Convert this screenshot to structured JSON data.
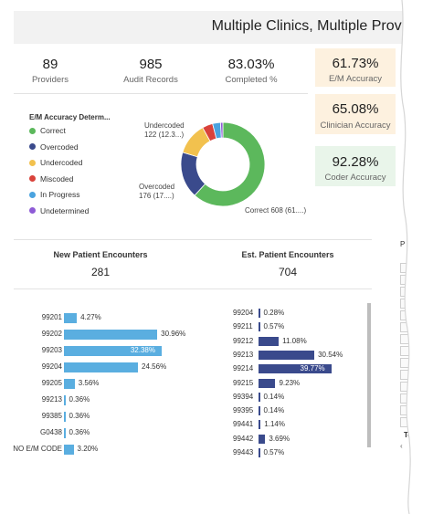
{
  "header": {
    "title": "Multiple Clinics, Multiple Provide"
  },
  "kpis": [
    {
      "value": "89",
      "label": "Providers"
    },
    {
      "value": "985",
      "label": "Audit Records"
    },
    {
      "value": "83.03%",
      "label": "Completed %"
    }
  ],
  "cards": {
    "em_accuracy": {
      "value": "61.73%",
      "label": "E/M Accuracy"
    },
    "clinician_accuracy": {
      "value": "65.08%",
      "label": "Clinician Accuracy"
    },
    "coder_accuracy": {
      "value": "92.28%",
      "label": "Coder Accuracy"
    }
  },
  "legend": {
    "title": "E/M Accuracy Determ...",
    "items": [
      {
        "label": "Correct",
        "color": "#5cb85c"
      },
      {
        "label": "Overcoded",
        "color": "#3a4a8c"
      },
      {
        "label": "Undercoded",
        "color": "#f2c14e"
      },
      {
        "label": "Miscoded",
        "color": "#d9423a"
      },
      {
        "label": "In Progress",
        "color": "#4aa3df"
      },
      {
        "label": "Undetermined",
        "color": "#8e5bd6"
      }
    ]
  },
  "donut_labels": {
    "undercoded": [
      "Undercoded",
      "122 (12.3...)"
    ],
    "overcoded": [
      "Overcoded",
      "176 (17....)"
    ],
    "correct": "Correct 608 (61....)"
  },
  "chart_data": [
    {
      "type": "pie",
      "title": "E/M Accuracy Determ...",
      "categories": [
        "Correct",
        "Overcoded",
        "Undercoded",
        "Miscoded",
        "In Progress",
        "Undetermined"
      ],
      "values": [
        608,
        176,
        122,
        40,
        30,
        9
      ],
      "colors": [
        "#5cb85c",
        "#3a4a8c",
        "#f2c14e",
        "#d9423a",
        "#4aa3df",
        "#8e5bd6"
      ]
    },
    {
      "type": "bar",
      "title": "New Patient Encounters",
      "categories": [
        "99201",
        "99202",
        "99203",
        "99204",
        "99205",
        "99213",
        "99385",
        "G0438",
        "NO E/M CODE"
      ],
      "values": [
        4.27,
        30.96,
        32.38,
        24.56,
        3.56,
        0.36,
        0.36,
        0.36,
        3.2
      ],
      "labels": [
        "4.27%",
        "30.96%",
        "32.38%",
        "24.56%",
        "3.56%",
        "0.36%",
        "0.36%",
        "0.36%",
        "3.20%"
      ]
    },
    {
      "type": "bar",
      "title": "Est. Patient Encounters",
      "categories": [
        "99204",
        "99211",
        "99212",
        "99213",
        "99214",
        "99215",
        "99394",
        "99395",
        "99441",
        "99442",
        "99443"
      ],
      "values": [
        0.28,
        0.57,
        11.08,
        30.54,
        39.77,
        9.23,
        0.14,
        0.14,
        1.14,
        3.69,
        0.57
      ],
      "labels": [
        "0.28%",
        "0.57%",
        "11.08%",
        "30.54%",
        "39.77%",
        "9.23%",
        "0.14%",
        "0.14%",
        "1.14%",
        "3.69%",
        "0.57%"
      ]
    }
  ],
  "encounters": {
    "new": {
      "title": "New Patient Encounters",
      "value": "281"
    },
    "est": {
      "title": "Est. Patient Encounters",
      "value": "704"
    }
  },
  "right_panel": {
    "header": "P",
    "footer": "To"
  }
}
